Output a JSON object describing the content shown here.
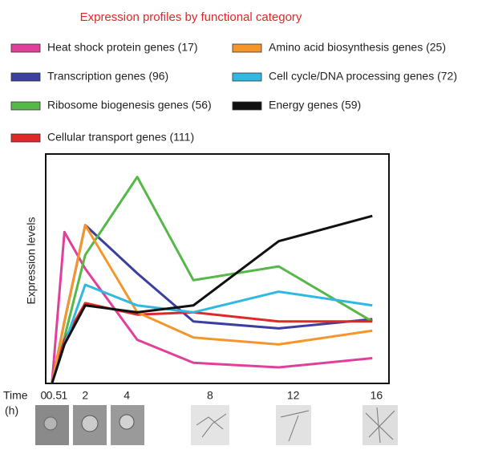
{
  "chart_data": {
    "type": "line",
    "title": "Expression profiles by functional category",
    "ylabel": "Expression levels",
    "xlabel": [
      "Time",
      "(h)"
    ],
    "x": [
      0.4,
      1,
      2,
      4.5,
      7.2,
      11.3,
      15.8
    ],
    "xlim": [
      0.1,
      16.6
    ],
    "xticks": [
      0,
      0.5,
      1,
      2,
      4,
      8,
      12,
      16
    ],
    "ylim": [
      0,
      100
    ],
    "series": [
      {
        "name": "Heat shock protein genes (17)",
        "color": "#e0409a",
        "values": [
          0,
          66,
          50,
          19,
          9,
          7,
          11
        ]
      },
      {
        "name": "Transcription genes (96)",
        "color": "#3a3fa0",
        "values": [
          0,
          27,
          69,
          48,
          27,
          24,
          28
        ]
      },
      {
        "name": "Ribosome biogenesis genes (56)",
        "color": "#55b848",
        "values": [
          0,
          20,
          56,
          90,
          45,
          51,
          27
        ]
      },
      {
        "name": "Cellular transport genes (111)",
        "color": "#e02828",
        "values": [
          0,
          19,
          35,
          30,
          31,
          27,
          27
        ]
      },
      {
        "name": "Amino acid biosynthesis genes (25)",
        "color": "#f5962a",
        "values": [
          0,
          27,
          69,
          31,
          20,
          17,
          23
        ]
      },
      {
        "name": "Cell cycle/DNA processing genes (72)",
        "color": "#30b8e0",
        "values": [
          0,
          17,
          43,
          34,
          31,
          40,
          34
        ]
      },
      {
        "name": "Energy genes (59)",
        "color": "#111111",
        "values": [
          0,
          17,
          34,
          31,
          34,
          62,
          73
        ]
      }
    ]
  }
}
